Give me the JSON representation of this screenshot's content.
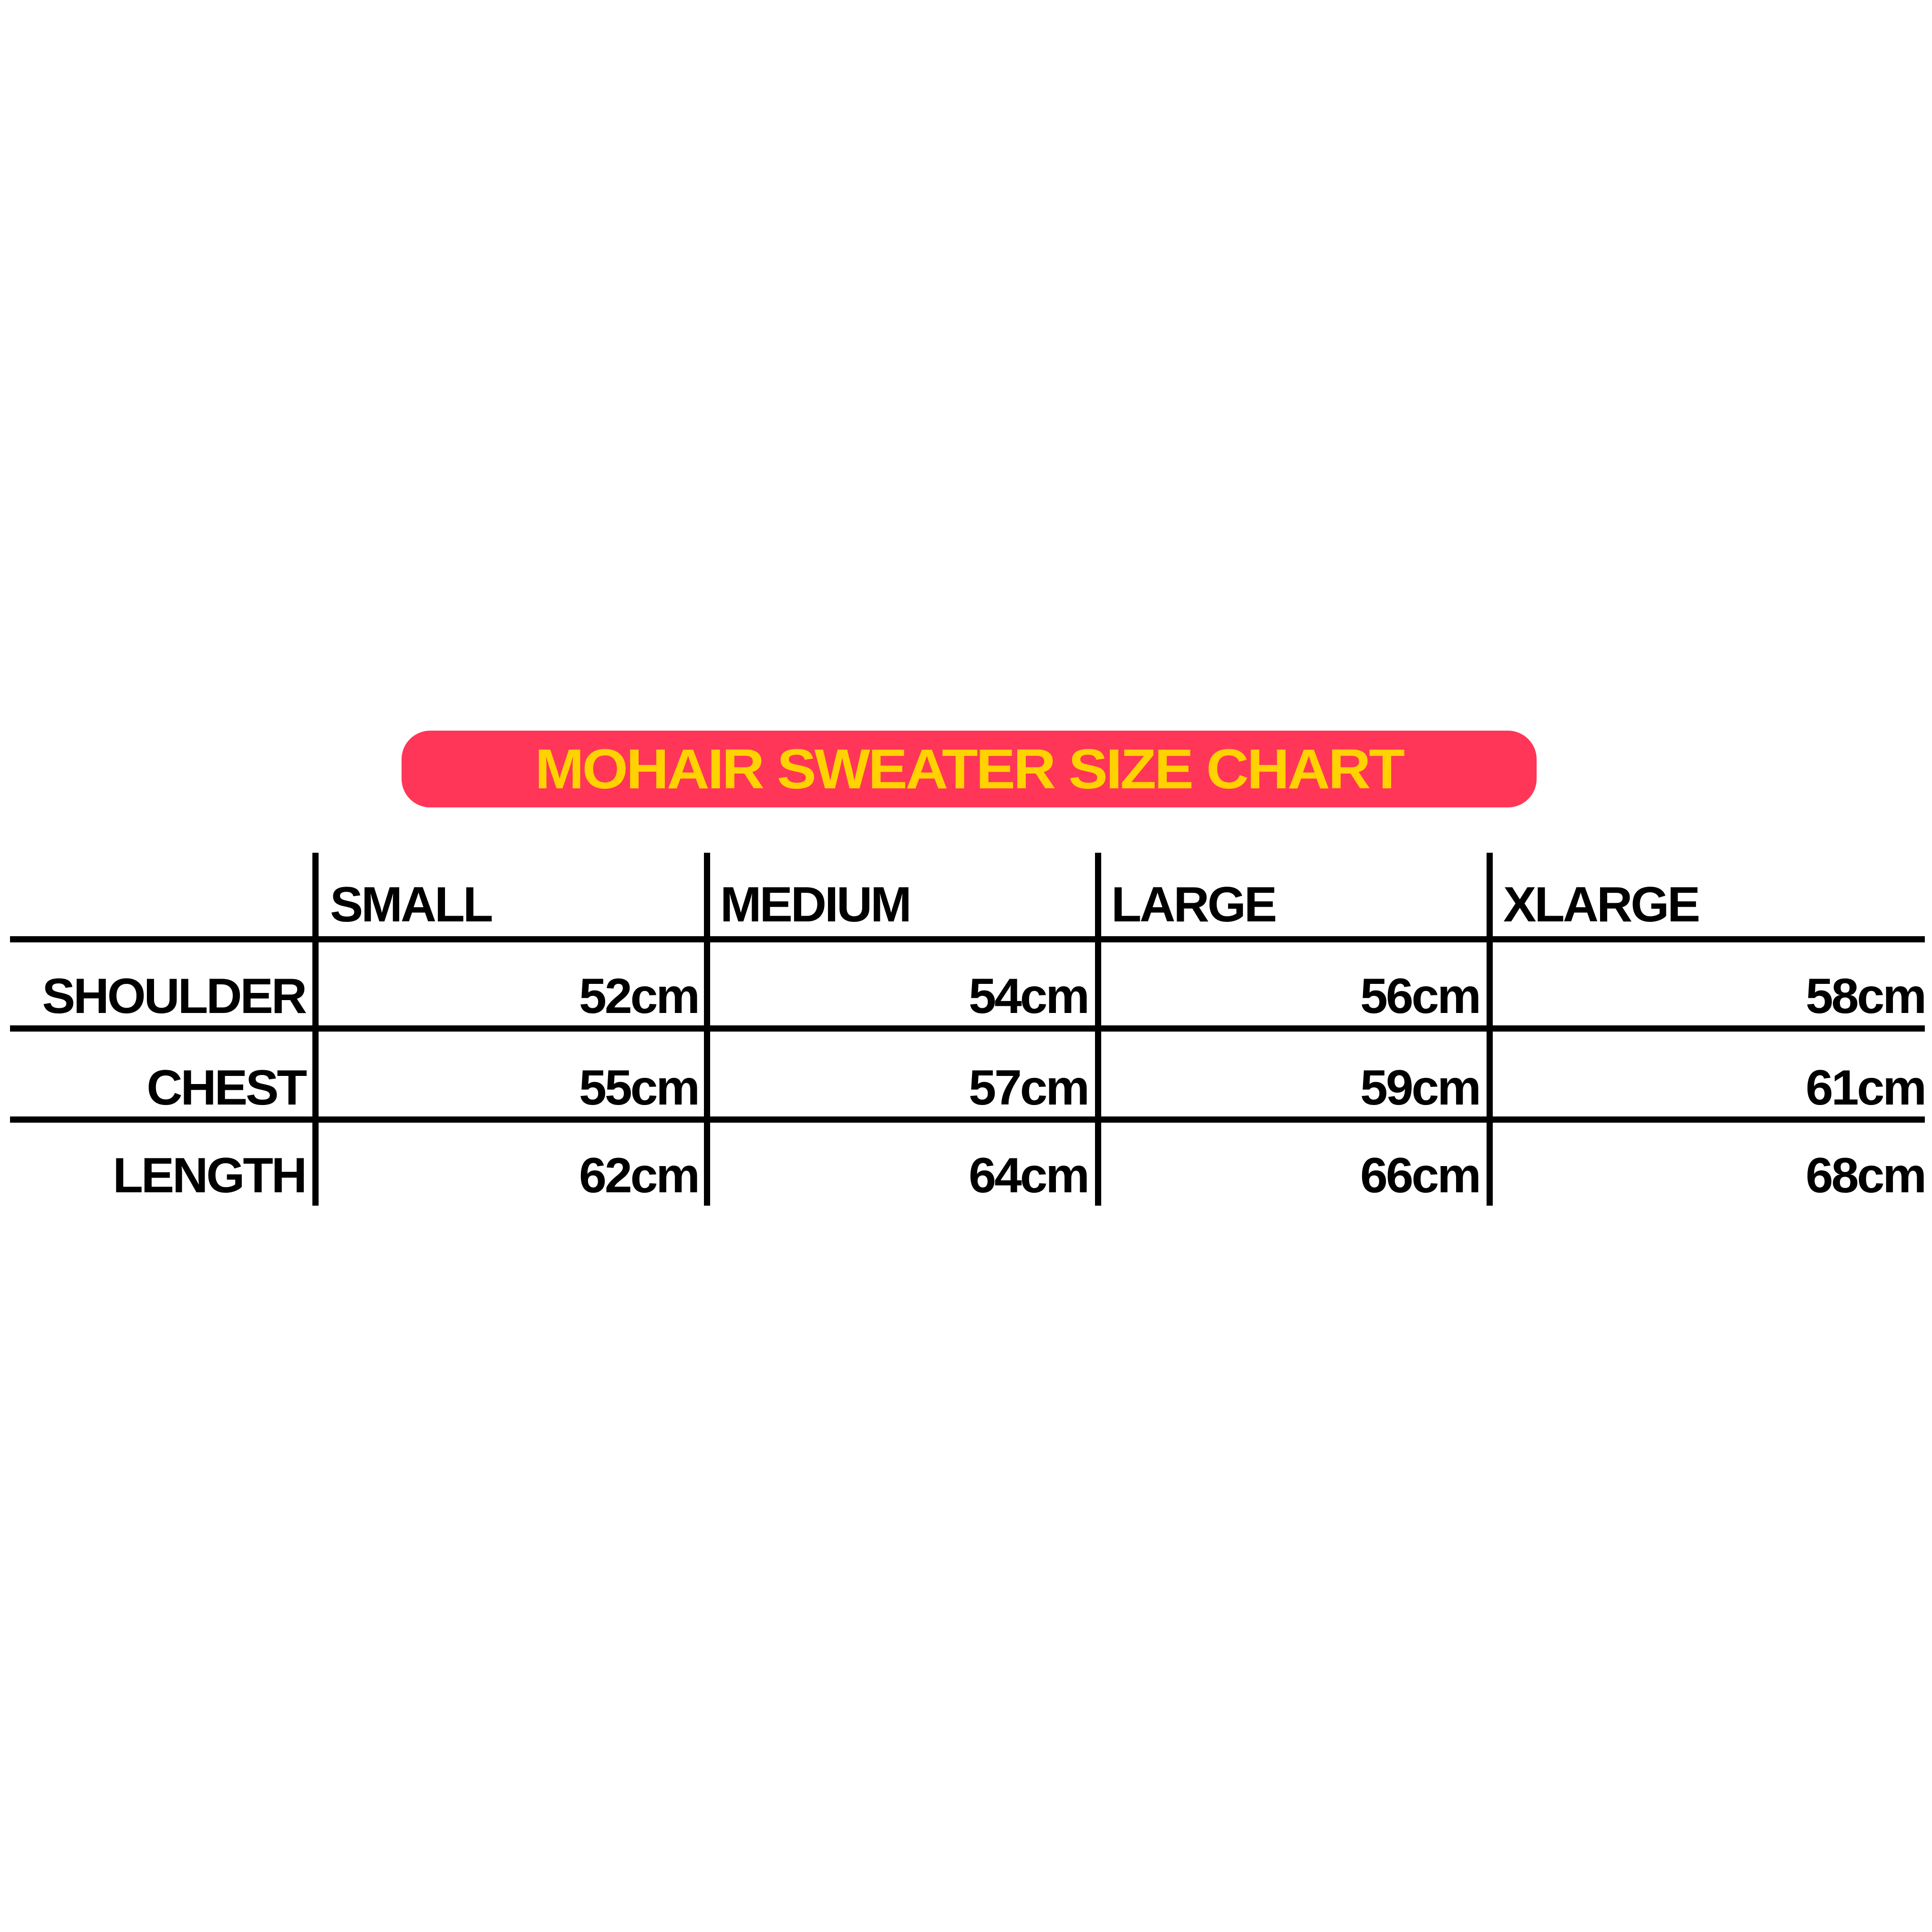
{
  "title": "MOHAIR SWEATER SIZE CHART",
  "colors": {
    "title_bg": "#FF3657",
    "title_text": "#FFD200",
    "text": "#000000"
  },
  "table": {
    "columns": [
      "SMALL",
      "MEDIUM",
      "LARGE",
      "XLARGE"
    ],
    "rows": [
      {
        "label": "SHOULDER",
        "values": [
          "52cm",
          "54cm",
          "56cm",
          "58cm"
        ]
      },
      {
        "label": "CHEST",
        "values": [
          "55cm",
          "57cm",
          "59cm",
          "61cm"
        ]
      },
      {
        "label": "LENGTH",
        "values": [
          "62cm",
          "64cm",
          "66cm",
          "68cm"
        ]
      }
    ]
  }
}
